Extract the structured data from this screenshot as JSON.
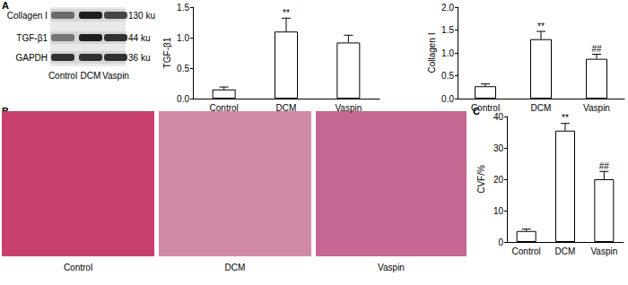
{
  "panel_labels": [
    "A",
    "B",
    "C"
  ],
  "blot": {
    "rows": [
      {
        "label": "Collagen Ⅰ",
        "size": "130 ku"
      },
      {
        "label": "TGF-β1",
        "size": "44 ku"
      },
      {
        "label": "GAPDH",
        "size": "36 ku"
      }
    ],
    "lanes": [
      "Control",
      "DCM",
      "Vaspin"
    ]
  },
  "histology": {
    "images": [
      "Control",
      "DCM",
      "Vaspin"
    ]
  },
  "chart_data": [
    {
      "type": "bar",
      "ylabel": "TGF-β1",
      "categories": [
        "Control",
        "DCM",
        "Vaspin"
      ],
      "values": [
        0.15,
        1.1,
        0.92
      ],
      "errors": [
        0.04,
        0.22,
        0.12
      ],
      "significance": [
        null,
        "**",
        null
      ],
      "color": "#ffffff",
      "ylim": [
        0,
        1.5
      ],
      "yticks": [
        {
          "value": 0,
          "label": "0.0"
        },
        0.5,
        {
          "value": 1,
          "label": "1.0"
        },
        1.5
      ],
      "grid": false
    },
    {
      "type": "bar",
      "ylabel": "Collagen Ⅰ",
      "categories": [
        "Control",
        "DCM",
        "Vaspin"
      ],
      "values": [
        0.27,
        1.3,
        0.87
      ],
      "errors": [
        0.05,
        0.17,
        0.1
      ],
      "significance": [
        null,
        "**",
        "##"
      ],
      "color": "#ffffff",
      "ylim": [
        0,
        2
      ],
      "yticks": [
        {
          "value": 0,
          "label": "0.0"
        },
        0.5,
        {
          "value": 1,
          "label": "1.0"
        },
        1.5,
        {
          "value": 2,
          "label": "2.0"
        }
      ],
      "grid": false
    },
    {
      "type": "bar",
      "ylabel": "CVF/%",
      "categories": [
        "Control",
        "DCM",
        "Vaspin"
      ],
      "values": [
        3.5,
        35.5,
        20
      ],
      "errors": [
        0.6,
        2.3,
        2.5
      ],
      "significance": [
        null,
        "**",
        "##"
      ],
      "color": "#ffffff",
      "ylim": [
        0,
        40
      ],
      "yticks": [
        0,
        10,
        20,
        30,
        40
      ],
      "grid": false
    }
  ]
}
